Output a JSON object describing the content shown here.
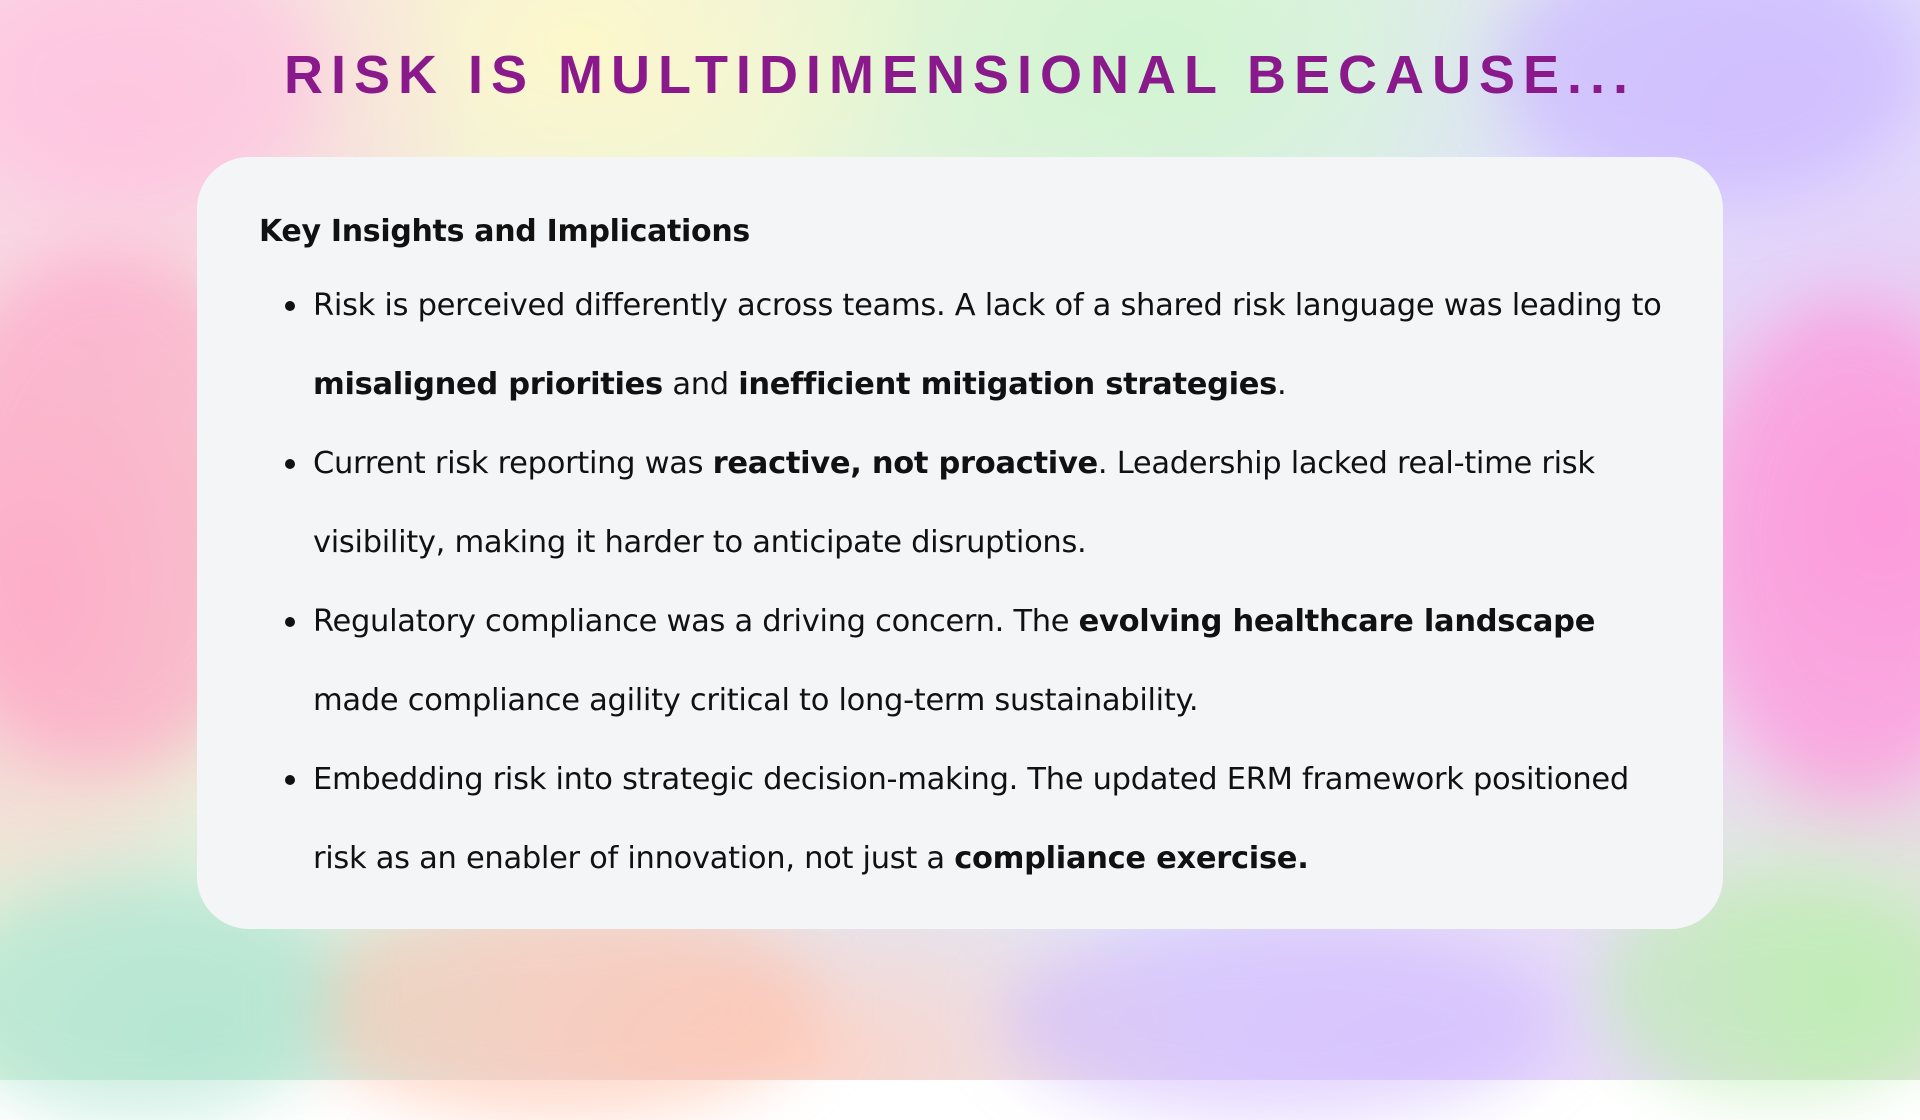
{
  "slide": {
    "title": "RISK IS MULTIDIMENSIONAL BECAUSE...",
    "title_color": "#8a1a8c",
    "card": {
      "heading": "Key Insights and Implications",
      "points": [
        {
          "t1": "Risk is perceived differently across teams. A lack of a shared risk language was leading to ",
          "b1": "misaligned priorities",
          "t2": " and ",
          "b2": "inefficient mitigation strategies",
          "t3": "."
        },
        {
          "t1": "Current risk reporting was ",
          "b1": "reactive, not proactive",
          "t2": ". Leadership lacked real-time risk visibility, making it harder to anticipate disruptions."
        },
        {
          "t1": "Regulatory compliance was a driving concern. The ",
          "b1": "evolving healthcare landscape",
          "t2": " made compliance agility critical to long-term sustainability."
        },
        {
          "t1": "Embedding risk into strategic decision-making. The updated ERM framework positioned risk as an enabler of innovation, not just a ",
          "b1": "compliance exercise."
        }
      ]
    }
  }
}
